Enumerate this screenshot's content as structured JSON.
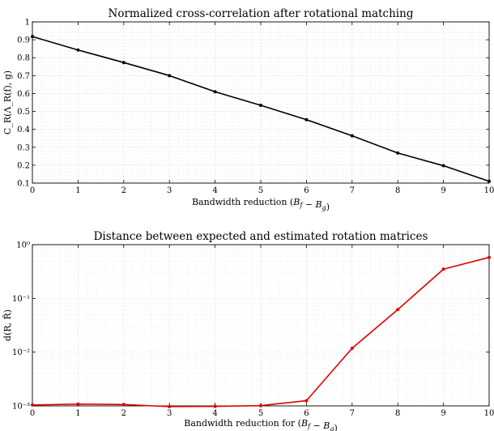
{
  "chart_data": [
    {
      "type": "line",
      "title": "Normalized cross-correlation after rotational matching",
      "xlabel": "Bandwidth reduction (B_f − B_g)",
      "ylabel": "C_R(Λ_R(f), g)",
      "xlim": [
        0,
        10
      ],
      "ylim": [
        0.1,
        1
      ],
      "yscale": "linear",
      "grid": true,
      "x": [
        0,
        1,
        2,
        3,
        4,
        5,
        6,
        7,
        8,
        9,
        10
      ],
      "x_ticks": [
        "0",
        "1",
        "2",
        "3",
        "4",
        "5",
        "6",
        "7",
        "8",
        "9",
        "10"
      ],
      "y_ticks": [
        "0.1",
        "0.2",
        "0.3",
        "0.4",
        "0.5",
        "0.6",
        "0.7",
        "0.8",
        "0.9",
        "1"
      ],
      "series": [
        {
          "values": [
            0.918,
            0.843,
            0.773,
            0.7,
            0.61,
            0.534,
            0.454,
            0.364,
            0.268,
            0.197,
            0.11
          ],
          "color": "#000000"
        }
      ]
    },
    {
      "type": "line",
      "title": "Distance between expected and estimated rotation matrices",
      "xlabel": "Bandwidth reduction for (B_f − B_g)",
      "ylabel": "d(R, R̂)",
      "xlim": [
        0,
        10
      ],
      "ylim": [
        0.001,
        1
      ],
      "yscale": "log",
      "grid": true,
      "x": [
        0,
        1,
        2,
        3,
        4,
        5,
        6,
        7,
        8,
        9,
        10
      ],
      "x_ticks": [
        "0",
        "1",
        "2",
        "3",
        "4",
        "5",
        "6",
        "7",
        "8",
        "9",
        "10"
      ],
      "y_ticks": [
        "10⁻³",
        "10⁻²",
        "10⁻¹",
        "10⁰"
      ],
      "series": [
        {
          "values": [
            0.00104,
            0.00108,
            0.00106,
            0.00097,
            0.00098,
            0.00101,
            0.00125,
            0.0118,
            0.062,
            0.35,
            0.58
          ],
          "color": "#e00000"
        }
      ]
    }
  ]
}
